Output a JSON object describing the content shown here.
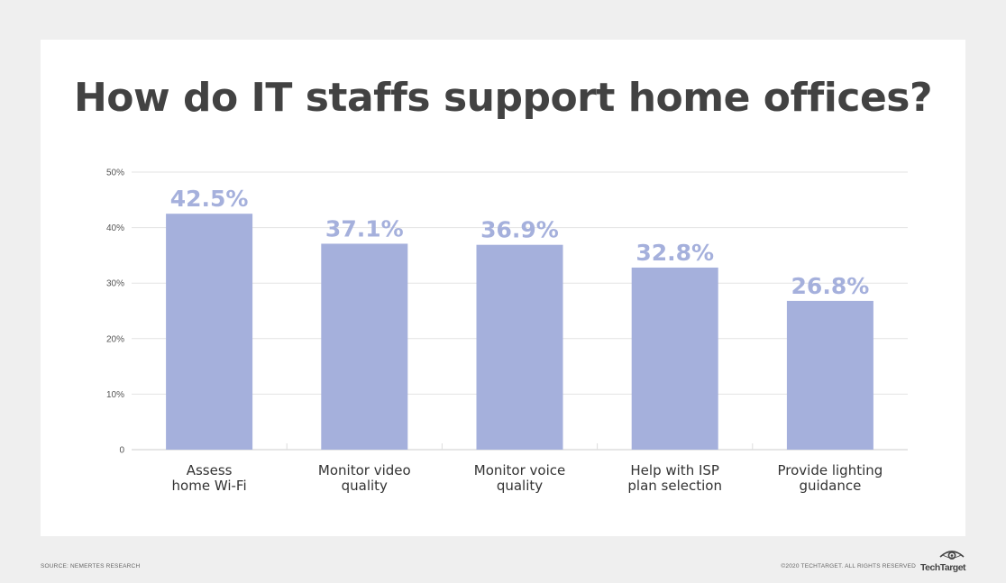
{
  "chart_data": {
    "type": "bar",
    "title": "How do IT staffs support home offices?",
    "categories": [
      [
        "Assess",
        "home Wi-Fi"
      ],
      [
        "Monitor video",
        "quality"
      ],
      [
        "Monitor voice",
        "quality"
      ],
      [
        "Help with ISP",
        "plan selection"
      ],
      [
        "Provide lighting",
        "guidance"
      ]
    ],
    "values": [
      42.5,
      37.1,
      36.9,
      32.8,
      26.8
    ],
    "value_labels": [
      "42.5%",
      "37.1%",
      "36.9%",
      "32.8%",
      "26.8%"
    ],
    "ylim": [
      0,
      50
    ],
    "yticks": [
      0,
      10,
      20,
      30,
      40,
      50
    ],
    "ytick_labels": [
      "0",
      "10%",
      "20%",
      "30%",
      "40%",
      "50%"
    ],
    "grid": true,
    "legend": "none",
    "bar_color": "#a5b0dc"
  },
  "footer": {
    "source": "SOURCE: NEMERTES RESEARCH",
    "copyright": "©2020 TECHTARGET. ALL RIGHTS RESERVED",
    "logo": "TechTarget"
  }
}
